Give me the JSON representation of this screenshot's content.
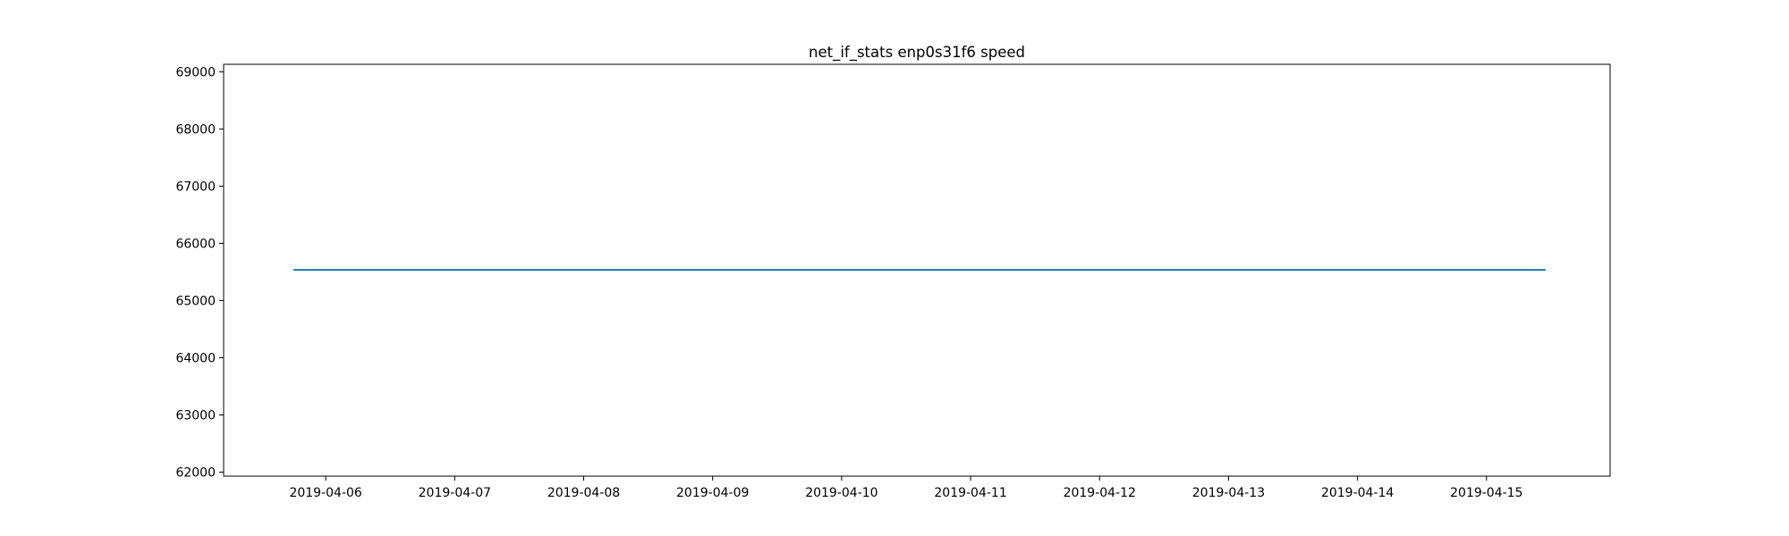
{
  "chart_data": {
    "type": "line",
    "title": "net_if_stats enp0s31f6 speed",
    "xlabel": "",
    "ylabel": "",
    "x_ticks": [
      "2019-04-06",
      "2019-04-07",
      "2019-04-08",
      "2019-04-09",
      "2019-04-10",
      "2019-04-11",
      "2019-04-12",
      "2019-04-13",
      "2019-04-14",
      "2019-04-15"
    ],
    "y_ticks": [
      62000,
      63000,
      64000,
      65000,
      66000,
      67000,
      68000,
      69000
    ],
    "xlim": [
      "2019-04-05 05:00",
      "2019-04-15 23:00"
    ],
    "ylim": [
      61930,
      69130
    ],
    "grid": false,
    "series": [
      {
        "color": "#1f77b4",
        "points": [
          {
            "x": "2019-04-05 18:00",
            "y": 65535
          },
          {
            "x": "2019-04-15 11:00",
            "y": 65535
          }
        ]
      }
    ]
  }
}
